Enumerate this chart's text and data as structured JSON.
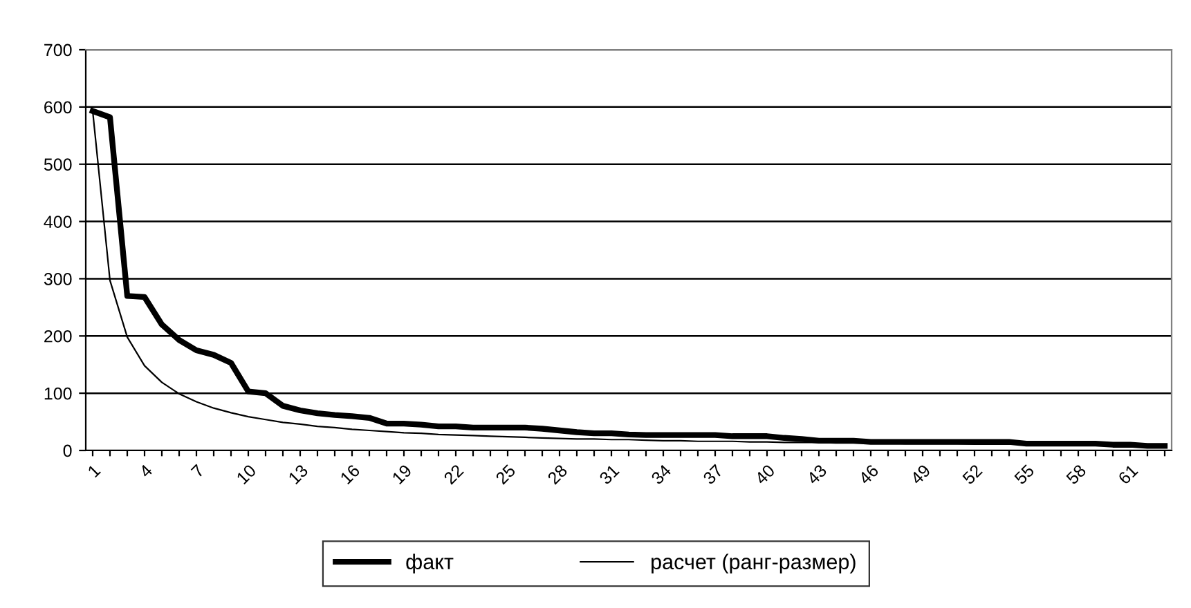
{
  "chart_data": {
    "type": "line",
    "categories": [
      "1",
      null,
      null,
      "4",
      null,
      null,
      "7",
      null,
      null,
      "10",
      null,
      null,
      "13",
      null,
      null,
      "16",
      null,
      null,
      "19",
      null,
      null,
      "22",
      null,
      null,
      "25",
      null,
      null,
      "28",
      null,
      null,
      "31",
      null,
      null,
      "34",
      null,
      null,
      "37",
      null,
      null,
      "40",
      null,
      null,
      "43",
      null,
      null,
      "46",
      null,
      null,
      "49",
      null,
      null,
      "52",
      null,
      null,
      "55",
      null,
      null,
      "58",
      null,
      null,
      "61",
      null,
      null
    ],
    "series": [
      {
        "name": "факт",
        "color": "#000000",
        "values": [
          593,
          582,
          270,
          268,
          220,
          193,
          175,
          167,
          153,
          103,
          100,
          78,
          70,
          65,
          62,
          60,
          57,
          47,
          47,
          45,
          42,
          42,
          40,
          40,
          40,
          40,
          38,
          35,
          32,
          30,
          30,
          28,
          27,
          27,
          27,
          27,
          27,
          25,
          25,
          25,
          22,
          20,
          17,
          17,
          17,
          15,
          15,
          15,
          15,
          15,
          15,
          15,
          15,
          15,
          12,
          12,
          12,
          12,
          12,
          10,
          10,
          8,
          8
        ]
      },
      {
        "name": "расчет (ранг-размер)",
        "color": "#000000",
        "values": [
          593,
          297,
          198,
          148,
          119,
          99,
          85,
          74,
          66,
          59,
          54,
          49,
          46,
          42,
          40,
          37,
          35,
          33,
          31,
          30,
          28,
          27,
          26,
          25,
          24,
          23,
          22,
          21,
          20,
          20,
          19,
          19,
          18,
          17,
          17,
          16,
          16,
          16,
          15,
          15,
          14,
          14,
          14,
          13,
          13,
          13,
          13,
          12,
          12,
          12,
          12,
          11,
          11,
          11,
          11,
          11,
          10,
          10,
          10,
          10,
          10,
          10,
          9
        ]
      }
    ],
    "ylim": [
      0,
      700
    ],
    "yticks": [
      0,
      100,
      200,
      300,
      400,
      500,
      600,
      700
    ],
    "grid": "y",
    "legend": "bottom",
    "marker": "none",
    "line_style": "solid"
  }
}
